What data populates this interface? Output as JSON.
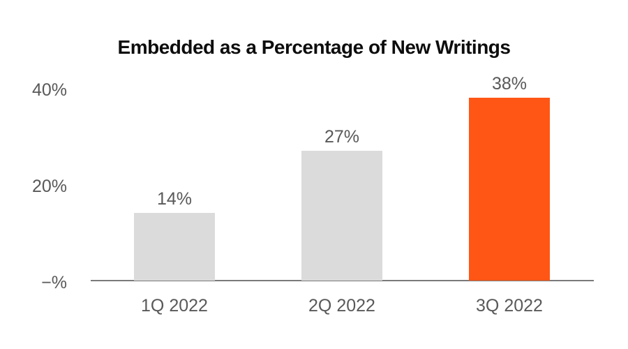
{
  "chart_data": {
    "type": "bar",
    "title": "Embedded as a Percentage of New Writings",
    "categories": [
      "1Q 2022",
      "2Q 2022",
      "3Q 2022"
    ],
    "values": [
      14,
      27,
      38
    ],
    "value_labels": [
      "14%",
      "27%",
      "38%"
    ],
    "yticks": [
      40,
      20,
      0
    ],
    "ytick_labels": [
      "40%",
      "20%",
      "−%"
    ],
    "ylim": [
      0,
      40
    ],
    "xlabel": "",
    "ylabel": "",
    "grid": false,
    "legend": false,
    "bar_colors": [
      "#dbdbdb",
      "#dbdbdb",
      "#ff5616"
    ],
    "colors": {
      "accent_orange": "#ff5616",
      "bar_gray": "#dbdbdb",
      "axis_line_gray": "#7a7a7a",
      "label_gray": "#595959",
      "title_black": "#0d0d0d",
      "background": "#ffffff"
    }
  }
}
